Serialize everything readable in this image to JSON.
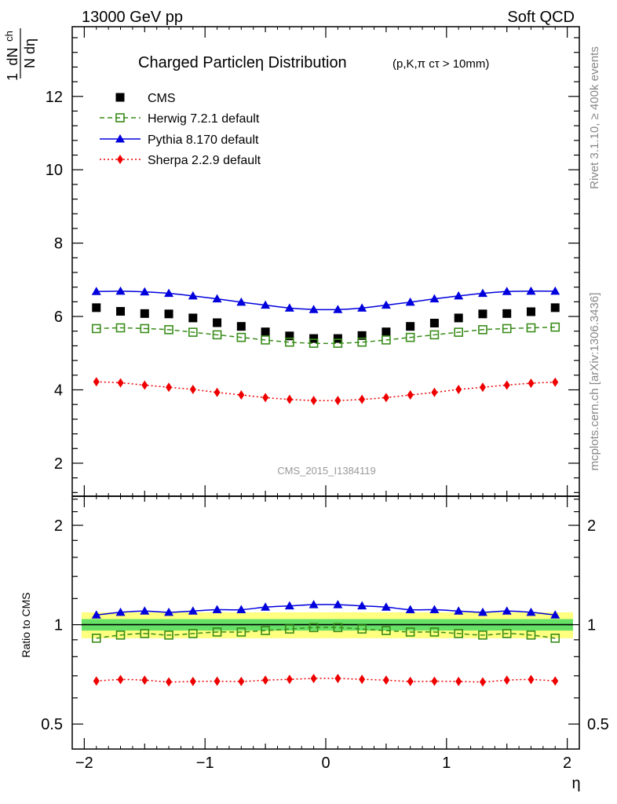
{
  "header": {
    "left": "13000 GeV pp",
    "right": "Soft QCD"
  },
  "side_labels": {
    "rivet": "Rivet 3.1.10, ≥ 400k events",
    "mcplots": "mcplots.cern.ch [arXiv:1306.3436]"
  },
  "watermark": "CMS_2015_I1384119",
  "colors": {
    "cms": "#000000",
    "herwig": "#3a8c1a",
    "pythia": "#0000dd",
    "sherpa": "#ee0000",
    "band_outer": "#ffff80",
    "band_inner": "#66e066"
  },
  "chart_data": [
    {
      "type": "scatter",
      "title": "Charged Particleη Distribution",
      "title_note": "(p,K,π cτ > 10mm)",
      "ylabel_top": "1",
      "ylabel_num": "dN",
      "ylabel_sub": "ch",
      "ylabel_den": "N dη",
      "ylim": [
        1.1,
        13.9
      ],
      "yticks": [
        2,
        4,
        6,
        8,
        10,
        12
      ],
      "ytick_labels": [
        "2",
        "4",
        "6",
        "8",
        "10",
        "12"
      ],
      "xlim": [
        -2.1,
        2.1
      ],
      "legend": {
        "placement": "top-left",
        "entries": [
          "CMS",
          "Herwig 7.2.1 default",
          "Pythia 8.170 default",
          "Sherpa 2.2.9 default"
        ]
      },
      "x": [
        -1.9,
        -1.7,
        -1.5,
        -1.3,
        -1.1,
        -0.9,
        -0.7,
        -0.5,
        -0.3,
        -0.1,
        0.1,
        0.3,
        0.5,
        0.7,
        0.9,
        1.1,
        1.3,
        1.5,
        1.7,
        1.9
      ],
      "series": [
        {
          "name": "CMS",
          "style": "square",
          "values": [
            6.24,
            6.14,
            6.08,
            6.07,
            5.96,
            5.83,
            5.73,
            5.58,
            5.47,
            5.4,
            5.4,
            5.48,
            5.58,
            5.73,
            5.82,
            5.96,
            6.07,
            6.08,
            6.13,
            6.24
          ]
        },
        {
          "name": "Herwig 7.2.1 default",
          "style": "open-square-dashed",
          "values": [
            5.67,
            5.69,
            5.67,
            5.64,
            5.57,
            5.5,
            5.43,
            5.36,
            5.3,
            5.27,
            5.27,
            5.3,
            5.36,
            5.43,
            5.5,
            5.57,
            5.64,
            5.67,
            5.69,
            5.71
          ]
        },
        {
          "name": "Pythia 8.170 default",
          "style": "triangle-solid",
          "values": [
            6.68,
            6.69,
            6.67,
            6.63,
            6.56,
            6.48,
            6.39,
            6.31,
            6.23,
            6.19,
            6.19,
            6.23,
            6.31,
            6.39,
            6.48,
            6.56,
            6.63,
            6.68,
            6.69,
            6.69
          ]
        },
        {
          "name": "Sherpa 2.2.9 default",
          "style": "diamond-dotted",
          "values": [
            4.22,
            4.19,
            4.13,
            4.07,
            4.01,
            3.93,
            3.86,
            3.79,
            3.74,
            3.71,
            3.71,
            3.74,
            3.79,
            3.86,
            3.93,
            4.01,
            4.07,
            4.13,
            4.18,
            4.21
          ]
        }
      ]
    },
    {
      "type": "scatter",
      "ylabel": "Ratio to CMS",
      "xlabel": "η",
      "yscale": "log",
      "ylim": [
        0.42,
        2.45
      ],
      "yticks": [
        0.5,
        1,
        2
      ],
      "ytick_labels": [
        "0.5",
        "1",
        "2"
      ],
      "xlim": [
        -2.1,
        2.1
      ],
      "xticks": [
        -2,
        -1,
        0,
        1,
        2
      ],
      "xtick_labels": [
        "−2",
        "−1",
        "0",
        "1",
        "2"
      ],
      "x": [
        -1.9,
        -1.7,
        -1.5,
        -1.3,
        -1.1,
        -0.9,
        -0.7,
        -0.5,
        -0.3,
        -0.1,
        0.1,
        0.3,
        0.5,
        0.7,
        0.9,
        1.1,
        1.3,
        1.5,
        1.7,
        1.9
      ],
      "band_outer": [
        0.09,
        0.09,
        0.09,
        0.09,
        0.09,
        0.09,
        0.09,
        0.09,
        0.09,
        0.09,
        0.09,
        0.09,
        0.09,
        0.09,
        0.09,
        0.09,
        0.09,
        0.09,
        0.09,
        0.09
      ],
      "band_inner": [
        0.04,
        0.04,
        0.04,
        0.04,
        0.04,
        0.04,
        0.04,
        0.04,
        0.04,
        0.04,
        0.04,
        0.04,
        0.04,
        0.04,
        0.04,
        0.04,
        0.04,
        0.04,
        0.04,
        0.04
      ],
      "series": [
        {
          "name": "Herwig 7.2.1 default",
          "style": "open-square-dashed",
          "values": [
            0.91,
            0.93,
            0.94,
            0.93,
            0.94,
            0.95,
            0.95,
            0.96,
            0.97,
            0.98,
            0.98,
            0.97,
            0.96,
            0.95,
            0.95,
            0.94,
            0.93,
            0.94,
            0.93,
            0.91
          ]
        },
        {
          "name": "Pythia 8.170 default",
          "style": "triangle-solid",
          "values": [
            1.07,
            1.09,
            1.1,
            1.09,
            1.1,
            1.11,
            1.11,
            1.13,
            1.14,
            1.15,
            1.15,
            1.14,
            1.13,
            1.11,
            1.11,
            1.1,
            1.09,
            1.1,
            1.09,
            1.07
          ]
        },
        {
          "name": "Sherpa 2.2.9 default",
          "style": "diamond-dotted",
          "values": [
            0.675,
            0.682,
            0.679,
            0.671,
            0.673,
            0.674,
            0.673,
            0.679,
            0.683,
            0.687,
            0.687,
            0.683,
            0.679,
            0.673,
            0.674,
            0.673,
            0.671,
            0.679,
            0.682,
            0.675
          ]
        }
      ]
    }
  ]
}
